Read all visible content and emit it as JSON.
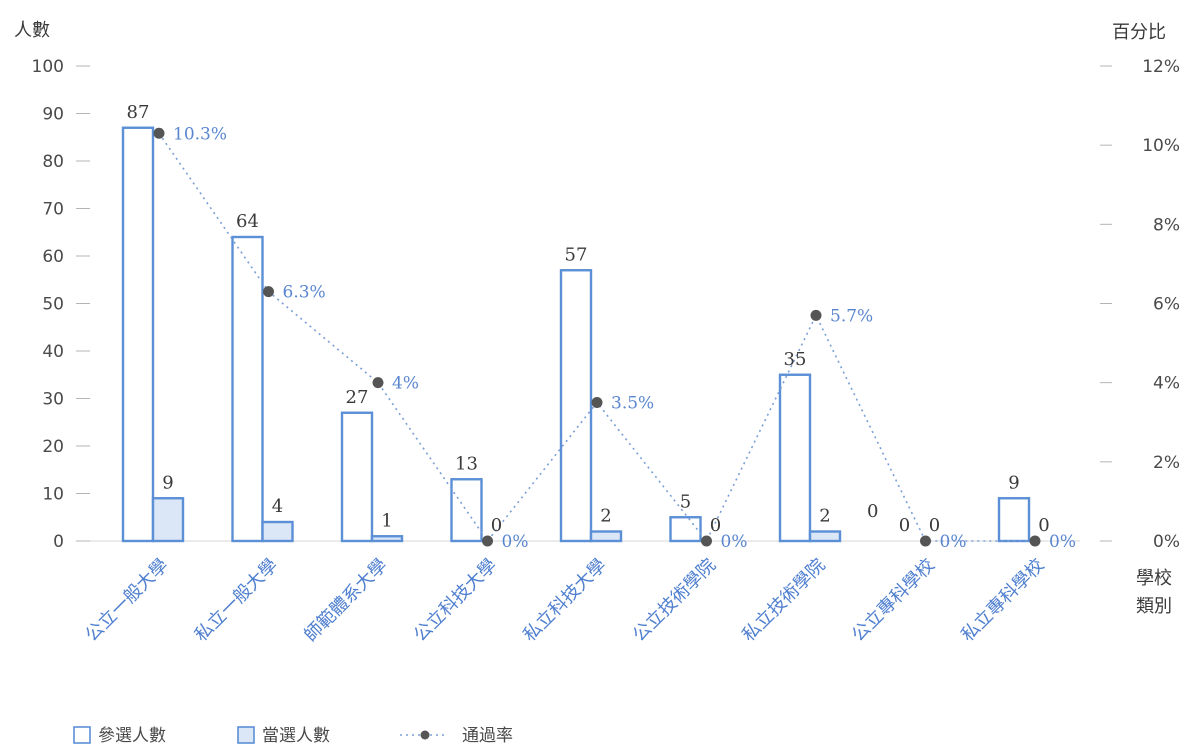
{
  "chart_data": {
    "type": "bar",
    "left_axis_title": "人數",
    "right_axis_title": "百分比",
    "x_axis_title_line1": "學校",
    "x_axis_title_line2": "類別",
    "ylim": [
      0,
      100
    ],
    "yticks": [
      "0",
      "10",
      "20",
      "30",
      "40",
      "50",
      "60",
      "70",
      "80",
      "90",
      "100"
    ],
    "y2lim": [
      0,
      12
    ],
    "y2ticks": [
      "0%",
      "2%",
      "4%",
      "6%",
      "8%",
      "10%",
      "12%"
    ],
    "categories": [
      "公立一般大學",
      "私立一般大學",
      "師範體系大學",
      "公立科技大學",
      "私立科技大學",
      "公立技術學院",
      "私立技術學院",
      "公立專科學校",
      "私立專科學校"
    ],
    "series": [
      {
        "name": "參選人數",
        "values": [
          87,
          64,
          27,
          13,
          57,
          5,
          35,
          0,
          9
        ],
        "labels": [
          "87",
          "64",
          "27",
          "13",
          "57",
          "5",
          "35",
          "0",
          "9"
        ],
        "color": "#5b8fd6"
      },
      {
        "name": "當選人數",
        "values": [
          9,
          4,
          1,
          0,
          2,
          0,
          2,
          0,
          0
        ],
        "labels": [
          "9",
          "4",
          "1",
          "0",
          "2",
          "0",
          "2",
          "0",
          "0"
        ],
        "color": "#5b8fd6",
        "fill": "#dbe6f6"
      },
      {
        "name": "通過率",
        "values": [
          10.3,
          6.3,
          4,
          0,
          3.5,
          0,
          5.7,
          0,
          0
        ],
        "labels": [
          "10.3%",
          "6.3%",
          "4%",
          "0%",
          "3.5%",
          "0%",
          "5.7%",
          "0%",
          "0%"
        ],
        "color": "#555555"
      }
    ],
    "legend_position": "bottom-left",
    "extra_label": "0"
  }
}
